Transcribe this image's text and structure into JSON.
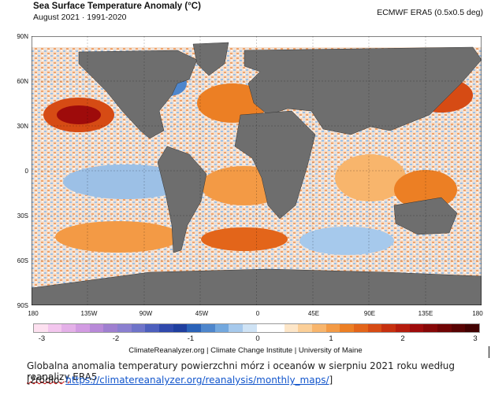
{
  "header": {
    "title": "Sea Surface Temperature Anomaly (°C)",
    "period": "August 2021 · 1991-2020",
    "dataset": "ECMWF ERA5 (0.5x0.5 deg)"
  },
  "map": {
    "lat_labels": [
      "90N",
      "60N",
      "30N",
      "0",
      "30S",
      "60S",
      "90S"
    ],
    "lon_labels": [
      "180",
      "135W",
      "90W",
      "45W",
      "0",
      "45E",
      "90E",
      "135E",
      "180"
    ],
    "colors": {
      "land": "#6e6e6e",
      "ice": "#ffffff",
      "warm": "#e8762b",
      "cool": "#7fa6d9"
    }
  },
  "colorbar": {
    "tick_labels": [
      "-3",
      "-2",
      "-1",
      "0",
      "1",
      "2",
      "3"
    ],
    "colors": [
      "#fde0f0",
      "#f3c6ee",
      "#e4b0e8",
      "#d29be2",
      "#b889d8",
      "#9f7fd0",
      "#8a7fd0",
      "#6f74c9",
      "#4d5fbd",
      "#3049ac",
      "#1f3f9f",
      "#2a62b8",
      "#4e86cc",
      "#73a8de",
      "#a6c9ec",
      "#cfe3f5",
      "#ffffff",
      "#ffffff",
      "#fde6c8",
      "#fbcf98",
      "#f8b56c",
      "#f39a45",
      "#ec7f24",
      "#e3651a",
      "#d64b14",
      "#c6300f",
      "#b51c0d",
      "#9e0b0b",
      "#860707",
      "#6f0404",
      "#580303",
      "#420202"
    ]
  },
  "credit": "ClimateReanalyzer.org | Climate Change Institute | University of Maine",
  "caption": {
    "line1_before": "Globalna anomalia temperatury powierzchni mórz i oceanów w sierpniu 2021 roku według ",
    "line1_underlined": "reanalizy",
    "line1_after": " ERA5",
    "line2_prefix": "[źródło: ",
    "link": "https://climatereanalyzer.org/reanalysis/monthly_maps/",
    "line2_suffix": "]"
  }
}
